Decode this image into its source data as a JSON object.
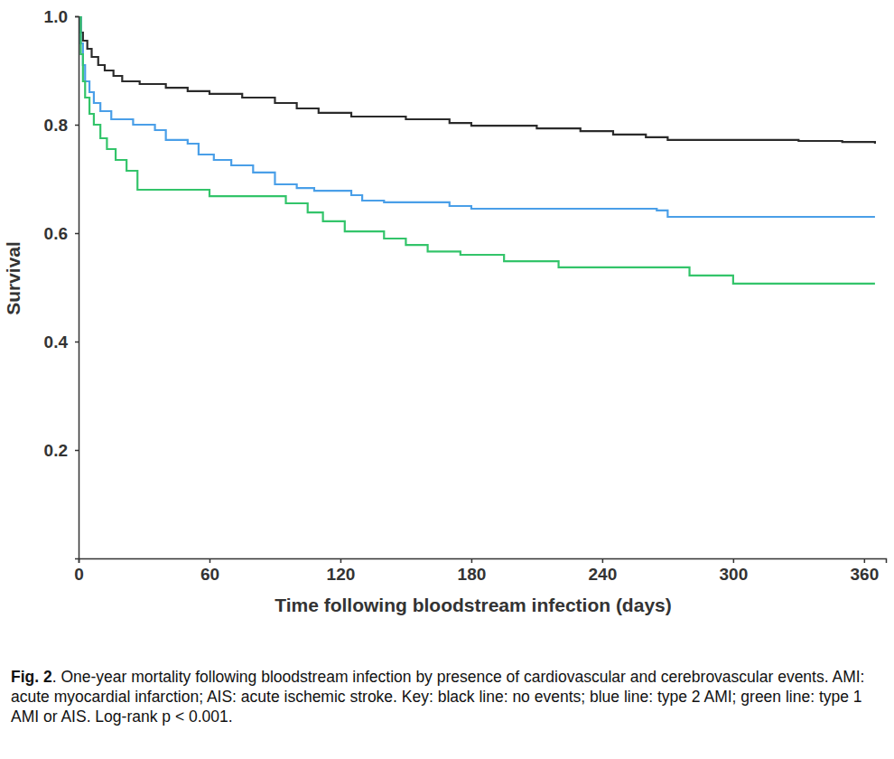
{
  "chart_data": {
    "type": "line",
    "marker": "none",
    "line_style": "step",
    "x_label": "Time following bloodstream infection (days)",
    "y_label": "Survival",
    "xlim": [
      0,
      370
    ],
    "xticks": [
      0,
      60,
      120,
      180,
      240,
      300,
      360
    ],
    "ylim": [
      0,
      1
    ],
    "yticks": [
      0.2,
      0.4,
      0.6,
      {
        "value": 0.8,
        "label": "0.8"
      },
      {
        "value": 1,
        "label": "1.0"
      }
    ],
    "grid": false,
    "caption_label": "Fig. 2",
    "caption": ". One-year mortality following bloodstream infection by presence of cardiovascular and cerebrovascular events. AMI:  acute myocardial infarction; AIS: acute ischemic stroke. Key: black line: no events; blue line: type 2 AMI; green line: type 1 AMI or AIS. Log-rank p < 0.001.",
    "series": [
      {
        "color": "#2b2b2b",
        "x": [
          0,
          1,
          2,
          4,
          6,
          9,
          12,
          16,
          20,
          28,
          40,
          50,
          60,
          75,
          90,
          100,
          110,
          125,
          150,
          170,
          180,
          210,
          230,
          245,
          260,
          270,
          300,
          330,
          350,
          365
        ],
        "values": [
          1.0,
          0.97,
          0.955,
          0.94,
          0.925,
          0.91,
          0.9,
          0.89,
          0.88,
          0.875,
          0.868,
          0.862,
          0.857,
          0.85,
          0.84,
          0.83,
          0.822,
          0.815,
          0.81,
          0.803,
          0.798,
          0.793,
          0.788,
          0.782,
          0.777,
          0.772,
          0.772,
          0.77,
          0.768,
          0.765
        ]
      },
      {
        "color": "#4a9fe8",
        "x": [
          0,
          1,
          2,
          3,
          5,
          7,
          10,
          15,
          25,
          35,
          40,
          50,
          55,
          62,
          70,
          80,
          90,
          100,
          108,
          125,
          130,
          140,
          170,
          180,
          265,
          270,
          365
        ],
        "values": [
          1.0,
          0.95,
          0.91,
          0.88,
          0.86,
          0.84,
          0.825,
          0.81,
          0.8,
          0.79,
          0.772,
          0.765,
          0.745,
          0.735,
          0.725,
          0.712,
          0.69,
          0.683,
          0.678,
          0.67,
          0.66,
          0.657,
          0.65,
          0.645,
          0.642,
          0.63,
          0.63
        ]
      },
      {
        "color": "#33c46a",
        "x": [
          0,
          1,
          2,
          3,
          5,
          7,
          10,
          13,
          17,
          22,
          27,
          60,
          95,
          105,
          112,
          122,
          140,
          150,
          160,
          175,
          195,
          220,
          280,
          300,
          365
        ],
        "values": [
          1.0,
          0.93,
          0.88,
          0.85,
          0.82,
          0.8,
          0.775,
          0.755,
          0.735,
          0.715,
          0.68,
          0.668,
          0.655,
          0.638,
          0.622,
          0.603,
          0.59,
          0.578,
          0.566,
          0.56,
          0.548,
          0.537,
          0.522,
          0.507,
          0.507
        ]
      }
    ]
  }
}
